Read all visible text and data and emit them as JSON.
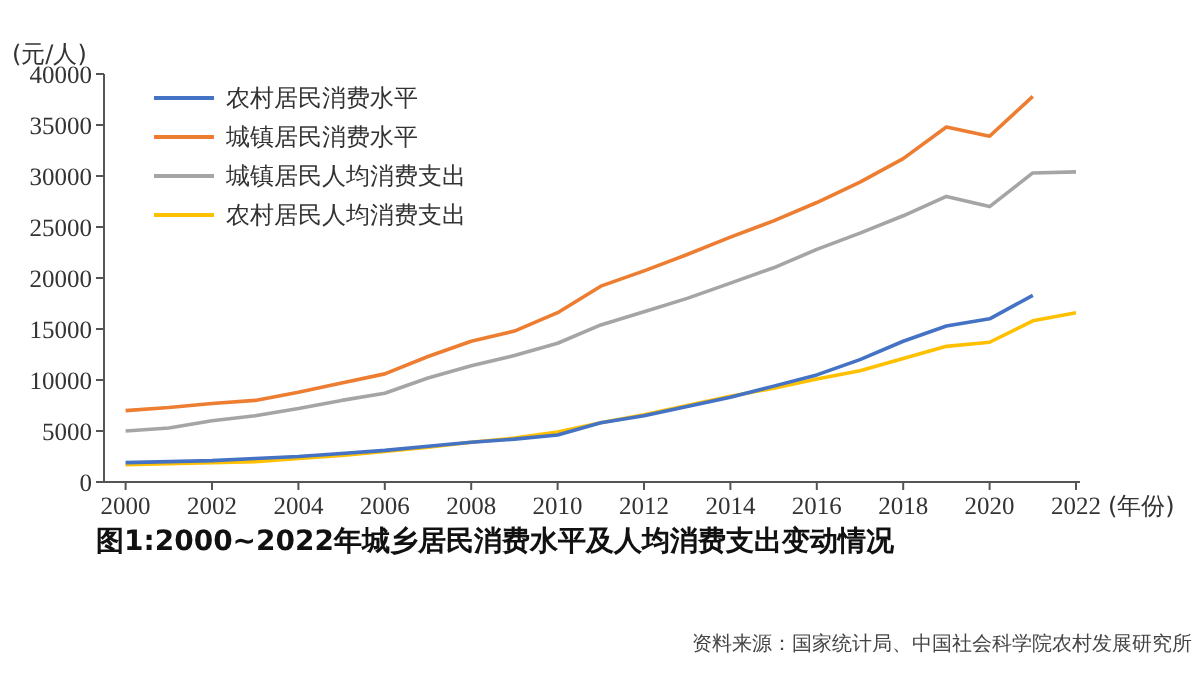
{
  "chart_data": {
    "type": "line",
    "title": "图1:2000~2022年城乡居民消费水平及人均消费支出变动情况",
    "ylabel": "(元/人)",
    "xlabel": "(年份)",
    "annotations": [
      "资料来源：国家统计局、中国社会科学院农村发展研究所"
    ],
    "x": [
      2000,
      2001,
      2002,
      2003,
      2004,
      2005,
      2006,
      2007,
      2008,
      2009,
      2010,
      2011,
      2012,
      2013,
      2014,
      2015,
      2016,
      2017,
      2018,
      2019,
      2020,
      2021,
      2022
    ],
    "series": [
      {
        "name": "农村居民消费水平",
        "color": "#4472c4",
        "values": [
          1900,
          2000,
          2100,
          2300,
          2500,
          2800,
          3100,
          3500,
          3900,
          4200,
          4600,
          5800,
          6500,
          7400,
          8300,
          9400,
          10500,
          12000,
          13800,
          15300,
          16000,
          18300,
          null
        ]
      },
      {
        "name": "城镇居民消费水平",
        "color": "#ed7d31",
        "values": [
          7000,
          7300,
          7700,
          8000,
          8800,
          9700,
          10600,
          12300,
          13800,
          14800,
          16600,
          19200,
          20700,
          22300,
          24000,
          25600,
          27400,
          29400,
          31700,
          34800,
          33900,
          37800,
          null
        ]
      },
      {
        "name": "城镇居民人均消费支出",
        "color": "#a5a5a5",
        "values": [
          5000,
          5300,
          6000,
          6500,
          7200,
          8000,
          8700,
          10200,
          11400,
          12400,
          13600,
          15400,
          16700,
          18000,
          19500,
          21000,
          22800,
          24400,
          26100,
          28000,
          27000,
          30300,
          30400
        ]
      },
      {
        "name": "农村居民人均消费支出",
        "color": "#ffc000",
        "values": [
          1700,
          1800,
          1900,
          2000,
          2300,
          2600,
          3000,
          3400,
          3900,
          4300,
          4900,
          5800,
          6600,
          7500,
          8400,
          9200,
          10100,
          10900,
          12100,
          13300,
          13700,
          15800,
          16600
        ]
      }
    ],
    "xlim": [
      1999.5,
      2022
    ],
    "xticks": [
      2000,
      2002,
      2004,
      2006,
      2008,
      2010,
      2012,
      2014,
      2016,
      2018,
      2020,
      2022
    ],
    "ylim": [
      0,
      40000
    ],
    "yticks": [
      0,
      5000,
      10000,
      15000,
      20000,
      25000,
      30000,
      35000,
      40000
    ],
    "legend": "top left",
    "grid": false,
    "marker": "none",
    "line_style": "solid"
  }
}
